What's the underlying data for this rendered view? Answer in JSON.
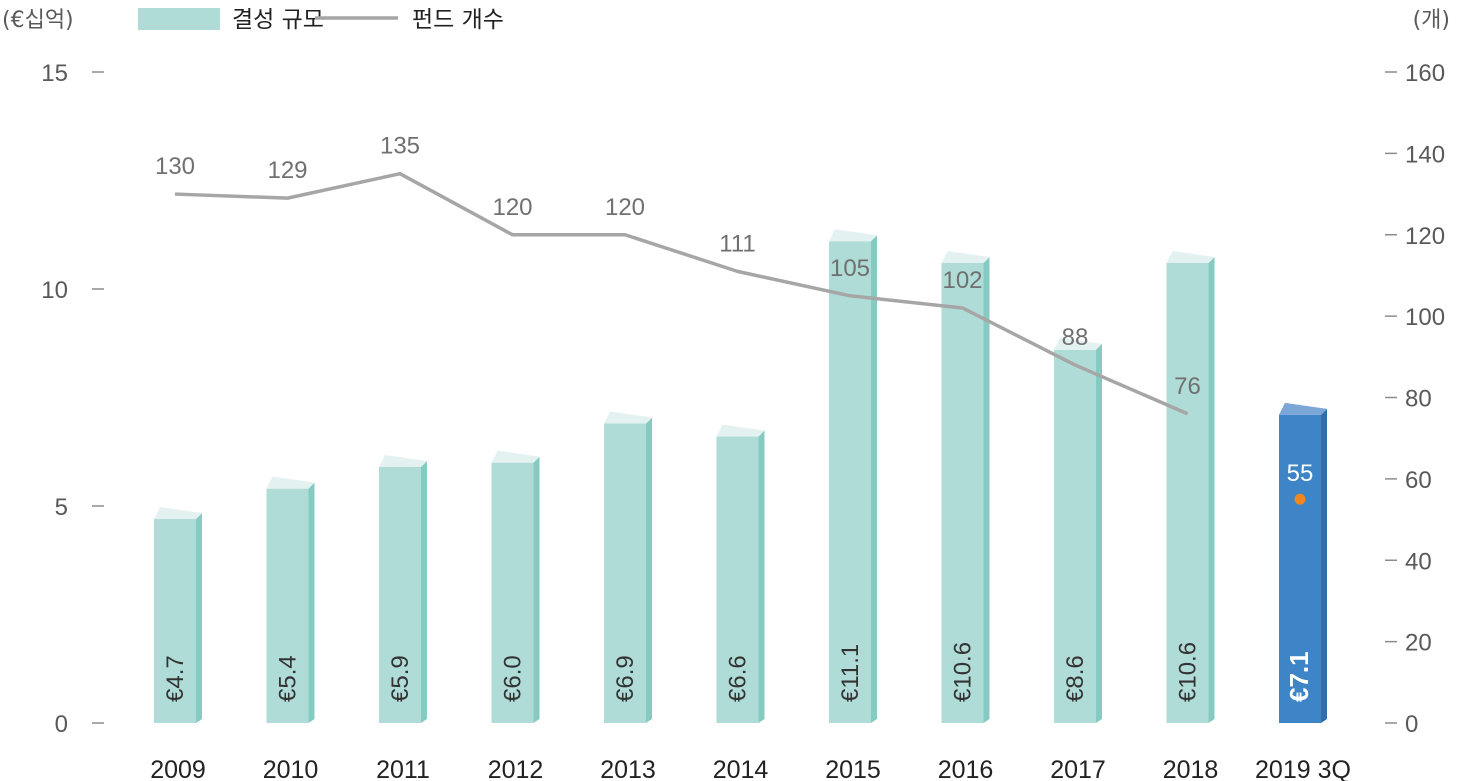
{
  "chart_data": {
    "type": "bar",
    "title": "",
    "categories": [
      "2009",
      "2010",
      "2011",
      "2012",
      "2013",
      "2014",
      "2015",
      "2016",
      "2017",
      "2018",
      "2019 3Q"
    ],
    "left_axis": {
      "unit": "(€십억)",
      "ylim": [
        0,
        15
      ],
      "ticks": [
        0,
        5,
        10,
        15
      ]
    },
    "right_axis": {
      "unit": "(개)",
      "ylim": [
        0,
        160
      ],
      "ticks": [
        0,
        20,
        40,
        60,
        80,
        100,
        120,
        140,
        160
      ]
    },
    "series": [
      {
        "name": "결성 규모",
        "type": "bar",
        "axis": "left",
        "values": [
          4.7,
          5.4,
          5.9,
          6.0,
          6.9,
          6.6,
          11.1,
          10.6,
          8.6,
          10.6,
          7.1
        ],
        "labels": [
          "€4.7",
          "€5.4",
          "€5.9",
          "€6.0",
          "€6.9",
          "€6.6",
          "€11.1",
          "€10.6",
          "€8.6",
          "€10.6",
          "€7.1"
        ],
        "color": "#b0dcd7",
        "highlight_color": "#3d85c6"
      },
      {
        "name": "펀드 개수",
        "type": "line",
        "axis": "right",
        "values": [
          130,
          129,
          135,
          120,
          120,
          111,
          105,
          102,
          88,
          76,
          55
        ],
        "labels": [
          "130",
          "129",
          "135",
          "120",
          "120",
          "111",
          "105",
          "102",
          "88",
          "76",
          "55"
        ],
        "color": "#a6a6a6",
        "highlight_point_color": "#f0861f"
      }
    ],
    "legend": {
      "position": "top-left"
    },
    "grid": false
  }
}
